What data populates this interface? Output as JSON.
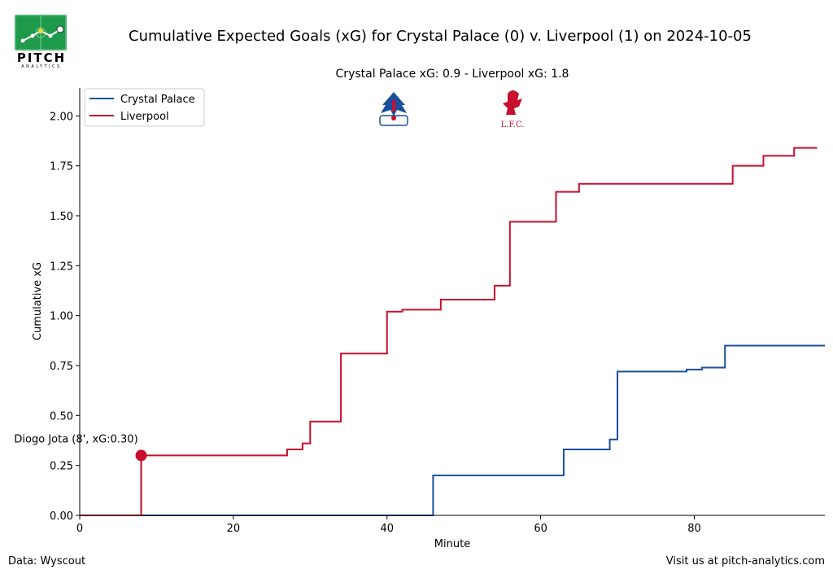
{
  "brand": {
    "word": "PITCH",
    "subword": "ANALYTICS"
  },
  "title": "Cumulative Expected Goals (xG) for Crystal Palace (0) v. Liverpool (1) on 2024-10-05",
  "subtitle": "Crystal Palace xG: 0.9 - Liverpool xG: 1.8",
  "footer": {
    "left": "Data: Wyscout",
    "right": "Visit us at pitch-analytics.com"
  },
  "colors": {
    "crystal_palace": "#1b4f9c",
    "liverpool": "#c8102e"
  },
  "crest_icons": [
    "crystal-palace-crest-icon",
    "liverpool-crest-icon"
  ],
  "chart_data": {
    "type": "line",
    "step": true,
    "xlabel": "Minute",
    "ylabel": "Cumulative xG",
    "xlim": [
      0,
      97
    ],
    "ylim": [
      0,
      2.14
    ],
    "xticks": [
      0,
      20,
      40,
      60,
      80
    ],
    "yticks": [
      0.0,
      0.25,
      0.5,
      0.75,
      1.0,
      1.25,
      1.5,
      1.75,
      2.0
    ],
    "ytick_labels": [
      "0.00",
      "0.25",
      "0.50",
      "0.75",
      "1.00",
      "1.25",
      "1.50",
      "1.75",
      "2.00"
    ],
    "legend_position": "top-left",
    "grid": false,
    "series": [
      {
        "name": "Crystal Palace",
        "color": "#1b4f9c",
        "x": [
          0,
          46,
          63,
          67,
          69,
          70,
          79,
          81,
          84,
          97
        ],
        "y": [
          0,
          0.2,
          0.33,
          0.33,
          0.38,
          0.72,
          0.73,
          0.74,
          0.85,
          0.85
        ]
      },
      {
        "name": "Liverpool",
        "color": "#c8102e",
        "x": [
          0,
          8,
          27,
          29,
          30,
          34,
          40,
          42,
          47,
          54,
          56,
          62,
          65,
          68,
          85,
          89,
          93,
          96
        ],
        "y": [
          0,
          0.3,
          0.33,
          0.36,
          0.47,
          0.81,
          1.02,
          1.03,
          1.08,
          1.15,
          1.47,
          1.62,
          1.66,
          1.66,
          1.75,
          1.8,
          1.84,
          1.84
        ]
      }
    ],
    "goals": [
      {
        "team": "Liverpool",
        "minute": 8,
        "xg_total": 0.3,
        "label": "Diogo Jota (8', xG:0.30)"
      }
    ]
  }
}
